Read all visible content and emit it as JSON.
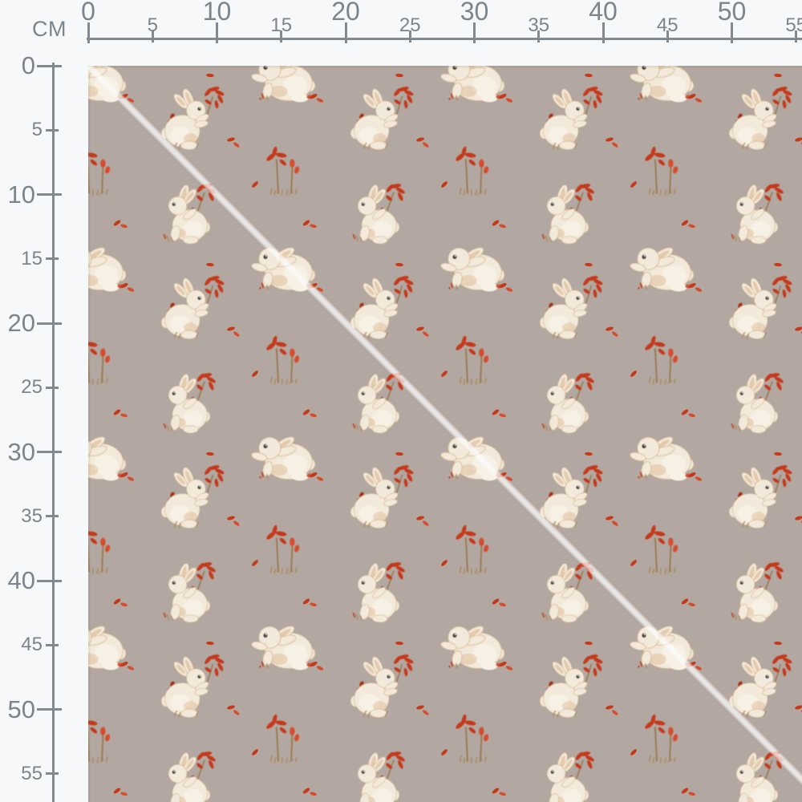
{
  "page": {
    "background_color": "#f6f8f9"
  },
  "ruler": {
    "unit_label": "CM",
    "line_color": "#828a91",
    "label_color": "#7c848c",
    "top": {
      "major_labels": [
        0,
        10,
        20,
        30,
        40,
        50
      ],
      "minor_labels": [
        5,
        15,
        25,
        35,
        45,
        55
      ]
    },
    "left": {
      "major_labels": [
        0,
        10,
        20,
        30,
        40,
        50
      ],
      "minor_labels": [
        5,
        15,
        25,
        35,
        45,
        55
      ]
    }
  },
  "fabric": {
    "description": "taupe fabric swatch with watercolor cream bunnies holding red berry branches, crouching lop-eared bunnies, red berry sprigs and scattered red petals in a half-drop repeat; white diagonal seam line from top-left to bottom-right",
    "background_color": "#b2a8a1",
    "diagonal_line_color": "rgba(255,255,255,0.72)",
    "palette": {
      "bunny_cream": "#f5ecdc",
      "bunny_highlight": "#fbf5e9",
      "bunny_tan": "#ddb88e",
      "bunny_outline": "#cfa87a",
      "eye": "#3b3733",
      "berry_red": "#c63413",
      "berry_red_bright": "#d8492a",
      "berry_red_dark": "#a82c10",
      "stem_brown": "#9a7850",
      "grass_tan": "#ab8a5e"
    }
  }
}
